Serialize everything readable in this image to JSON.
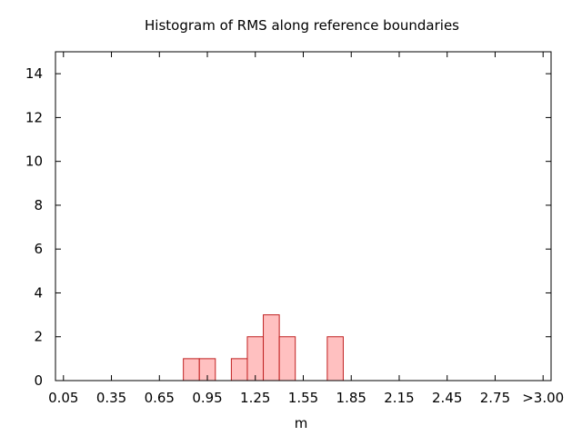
{
  "chart_data": {
    "type": "bar",
    "title": "Histogram of RMS along reference boundaries",
    "xlabel": "m",
    "ylabel": "",
    "ylim": [
      0,
      15
    ],
    "yticks": [
      0,
      2,
      4,
      6,
      8,
      10,
      12,
      14
    ],
    "xticks": [
      "0.05",
      "0.35",
      "0.65",
      "0.95",
      "1.25",
      "1.55",
      "1.85",
      "2.15",
      "2.45",
      "2.75",
      ">3.00"
    ],
    "xtick_values": [
      0.05,
      0.35,
      0.65,
      0.95,
      1.25,
      1.55,
      1.85,
      2.15,
      2.45,
      2.75,
      3.05
    ],
    "xlim": [
      0.0,
      3.1
    ],
    "bin_width": 0.1,
    "bins": [
      {
        "start": 0.8,
        "end": 0.9,
        "value": 1
      },
      {
        "start": 0.9,
        "end": 1.0,
        "value": 1
      },
      {
        "start": 1.1,
        "end": 1.2,
        "value": 1
      },
      {
        "start": 1.2,
        "end": 1.3,
        "value": 2
      },
      {
        "start": 1.3,
        "end": 1.4,
        "value": 3
      },
      {
        "start": 1.4,
        "end": 1.5,
        "value": 2
      },
      {
        "start": 1.7,
        "end": 1.8,
        "value": 2
      }
    ],
    "grid": false,
    "bar_fill": "#ffc0c0",
    "bar_stroke": "#c02020"
  }
}
